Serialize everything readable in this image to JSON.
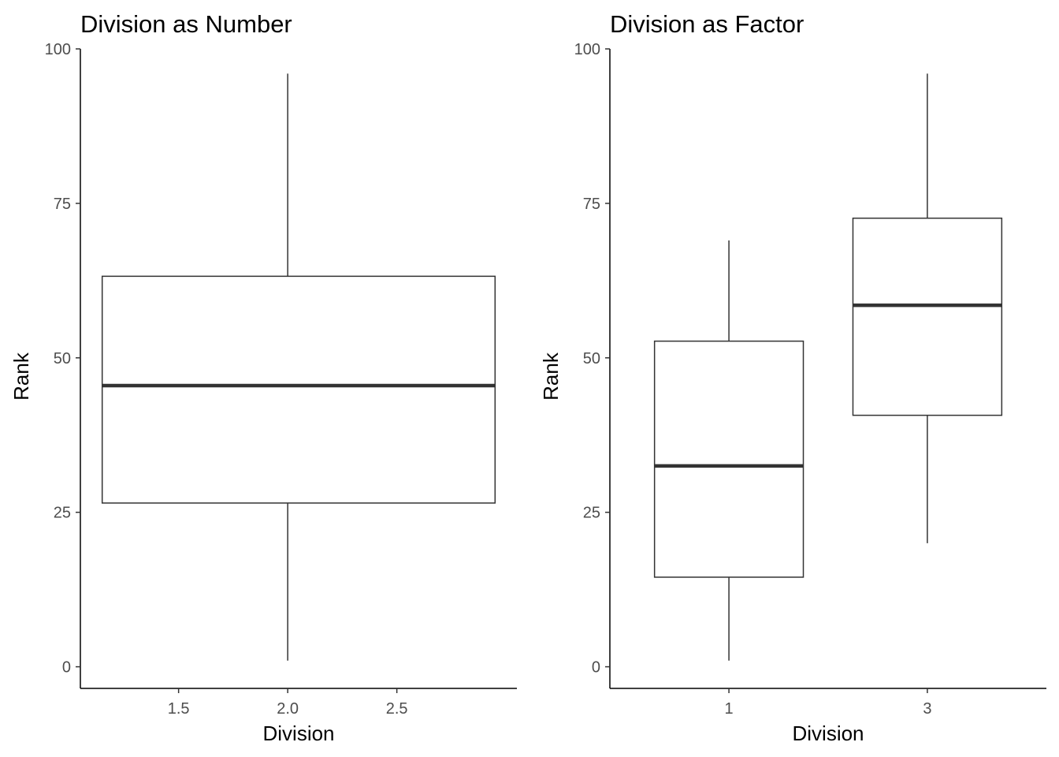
{
  "chart_data": [
    {
      "type": "boxplot",
      "title": "Division as Number",
      "xlabel": "Division",
      "ylabel": "Rank",
      "x_scale": "continuous",
      "xlim": [
        1.05,
        3.05
      ],
      "xticks": [
        {
          "value": 1.5,
          "label": "1.5"
        },
        {
          "value": 2.0,
          "label": "2.0"
        },
        {
          "value": 2.5,
          "label": "2.5"
        }
      ],
      "ylim": [
        -3.5,
        100
      ],
      "yticks": [
        {
          "value": 0,
          "label": "0"
        },
        {
          "value": 25,
          "label": "25"
        },
        {
          "value": 50,
          "label": "50"
        },
        {
          "value": 75,
          "label": "75"
        },
        {
          "value": 100,
          "label": "100"
        }
      ],
      "grid": false,
      "boxes": [
        {
          "x": 2.0,
          "x_left": 1.15,
          "x_right": 2.95,
          "whisker_low": 1,
          "q1": 26.5,
          "median": 45.5,
          "q3": 63.2,
          "whisker_high": 96
        }
      ]
    },
    {
      "type": "boxplot",
      "title": "Division as Factor",
      "xlabel": "Division",
      "ylabel": "Rank",
      "x_scale": "categorical",
      "categories": [
        "1",
        "3"
      ],
      "ylim": [
        -3.5,
        100
      ],
      "yticks": [
        {
          "value": 0,
          "label": "0"
        },
        {
          "value": 25,
          "label": "25"
        },
        {
          "value": 50,
          "label": "50"
        },
        {
          "value": 75,
          "label": "75"
        },
        {
          "value": 100,
          "label": "100"
        }
      ],
      "grid": false,
      "boxes": [
        {
          "category": "1",
          "whisker_low": 1,
          "q1": 14.5,
          "median": 32.5,
          "q3": 52.7,
          "whisker_high": 69
        },
        {
          "category": "3",
          "whisker_low": 20,
          "q1": 40.7,
          "median": 58.5,
          "q3": 72.6,
          "whisker_high": 96
        }
      ]
    }
  ]
}
